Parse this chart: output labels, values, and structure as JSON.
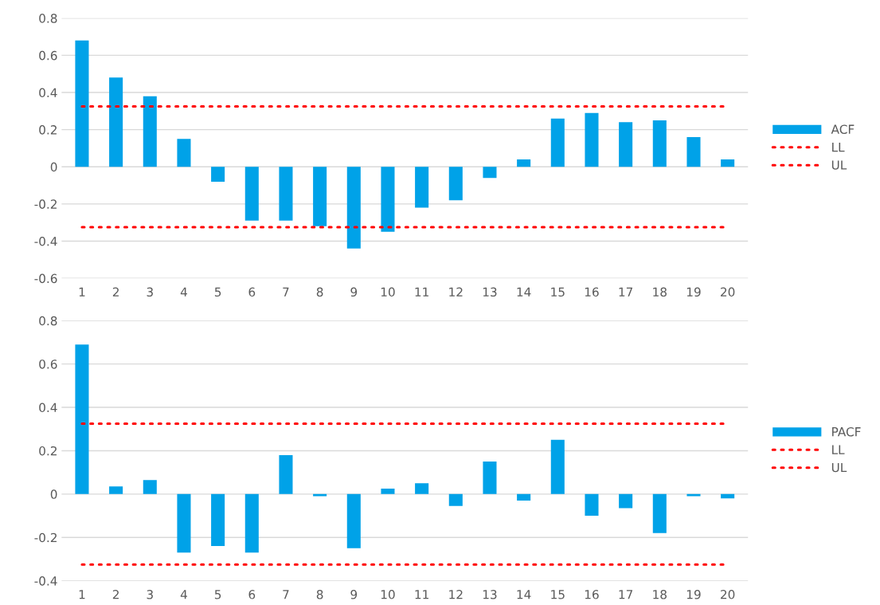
{
  "chart_data": [
    {
      "type": "bar",
      "categories": [
        "1",
        "2",
        "3",
        "4",
        "5",
        "6",
        "7",
        "8",
        "9",
        "10",
        "11",
        "12",
        "13",
        "14",
        "15",
        "16",
        "17",
        "18",
        "19",
        "20"
      ],
      "series": [
        {
          "name": "ACF",
          "color": "#00a2e8",
          "values": [
            0.68,
            0.48,
            0.38,
            0.15,
            -0.08,
            -0.29,
            -0.29,
            -0.32,
            -0.44,
            -0.35,
            -0.22,
            -0.18,
            -0.06,
            0.04,
            0.26,
            0.29,
            0.24,
            0.25,
            0.16,
            0.04
          ]
        },
        {
          "name": "LL",
          "type": "line",
          "color": "#ff0000",
          "line_style": "dotted",
          "values": [
            -0.325,
            -0.325,
            -0.325,
            -0.325,
            -0.325,
            -0.325,
            -0.325,
            -0.325,
            -0.325,
            -0.325,
            -0.325,
            -0.325,
            -0.325,
            -0.325,
            -0.325,
            -0.325,
            -0.325,
            -0.325,
            -0.325,
            -0.325
          ]
        },
        {
          "name": "UL",
          "type": "line",
          "color": "#ff0000",
          "line_style": "dotted",
          "values": [
            0.325,
            0.325,
            0.325,
            0.325,
            0.325,
            0.325,
            0.325,
            0.325,
            0.325,
            0.325,
            0.325,
            0.325,
            0.325,
            0.325,
            0.325,
            0.325,
            0.325,
            0.325,
            0.325,
            0.325
          ]
        }
      ],
      "ylim": [
        -0.6,
        0.8
      ],
      "yticks": [
        -0.6,
        -0.4,
        -0.2,
        0,
        0.2,
        0.4,
        0.6,
        0.8
      ],
      "grid": "y",
      "legend": "right"
    },
    {
      "type": "bar",
      "categories": [
        "1",
        "2",
        "3",
        "4",
        "5",
        "6",
        "7",
        "8",
        "9",
        "10",
        "11",
        "12",
        "13",
        "14",
        "15",
        "16",
        "17",
        "18",
        "19",
        "20"
      ],
      "series": [
        {
          "name": "PACF",
          "color": "#00a2e8",
          "values": [
            0.69,
            0.035,
            0.065,
            -0.27,
            -0.24,
            -0.27,
            0.18,
            -0.01,
            -0.25,
            0.025,
            0.05,
            -0.055,
            0.15,
            -0.03,
            0.25,
            -0.1,
            -0.065,
            -0.18,
            -0.01,
            -0.02
          ]
        },
        {
          "name": "LL",
          "type": "line",
          "color": "#ff0000",
          "line_style": "dotted",
          "values": [
            -0.325,
            -0.325,
            -0.325,
            -0.325,
            -0.325,
            -0.325,
            -0.325,
            -0.325,
            -0.325,
            -0.325,
            -0.325,
            -0.325,
            -0.325,
            -0.325,
            -0.325,
            -0.325,
            -0.325,
            -0.325,
            -0.325,
            -0.325
          ]
        },
        {
          "name": "UL",
          "type": "line",
          "color": "#ff0000",
          "line_style": "dotted",
          "values": [
            0.325,
            0.325,
            0.325,
            0.325,
            0.325,
            0.325,
            0.325,
            0.325,
            0.325,
            0.325,
            0.325,
            0.325,
            0.325,
            0.325,
            0.325,
            0.325,
            0.325,
            0.325,
            0.325,
            0.325
          ]
        }
      ],
      "ylim": [
        -0.4,
        0.8
      ],
      "yticks": [
        -0.4,
        -0.2,
        0,
        0.2,
        0.4,
        0.6,
        0.8
      ],
      "grid": "y",
      "legend": "right"
    }
  ]
}
